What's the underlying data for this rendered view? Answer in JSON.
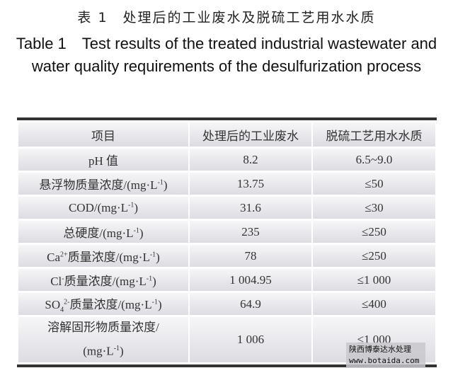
{
  "caption_cn": "表 1　处理后的工业废水及脱硫工艺用水水质",
  "caption_en": "Table 1　Test results of the treated industrial wastewater and water quality requirements of the desulfurization process",
  "headers": [
    "项目",
    "处理后的工业废水",
    "脱硫工艺用水水质"
  ],
  "rows": [
    {
      "name": "pH 值",
      "unit": "",
      "treated": "8.2",
      "requirement": "6.5~9.0"
    },
    {
      "name": "悬浮物质量浓度/(mg·L",
      "unit": "-1",
      "treated": "13.75",
      "requirement": "≤50"
    },
    {
      "name": "COD/(mg·L",
      "unit": "-1",
      "treated": "31.6",
      "requirement": "≤30"
    },
    {
      "name": "总硬度/(mg·L",
      "unit": "-1",
      "treated": "235",
      "requirement": "≤250"
    },
    {
      "name": "Ca",
      "ion": "2+",
      "rest": "质量浓度/(mg·L",
      "unit": "-1",
      "treated": "78",
      "requirement": "≤250"
    },
    {
      "name": "Cl",
      "ion": "-",
      "rest": "质量浓度/(mg·L",
      "unit": "-1",
      "treated": "1 004.95",
      "requirement": "≤1 000"
    },
    {
      "name": "SO",
      "sub": "4",
      "ion": "2-",
      "rest": "质量浓度/(mg·L",
      "unit": "-1",
      "treated": "64.9",
      "requirement": "≤400"
    },
    {
      "name": "溶解固形物质量浓度/",
      "name2": "(mg·L",
      "unit": "-1",
      "treated": "1 006",
      "requirement": "≤1 000"
    }
  ],
  "watermark": {
    "line1": "陕西博泰达水处理",
    "line2": "www.botaida.com"
  }
}
